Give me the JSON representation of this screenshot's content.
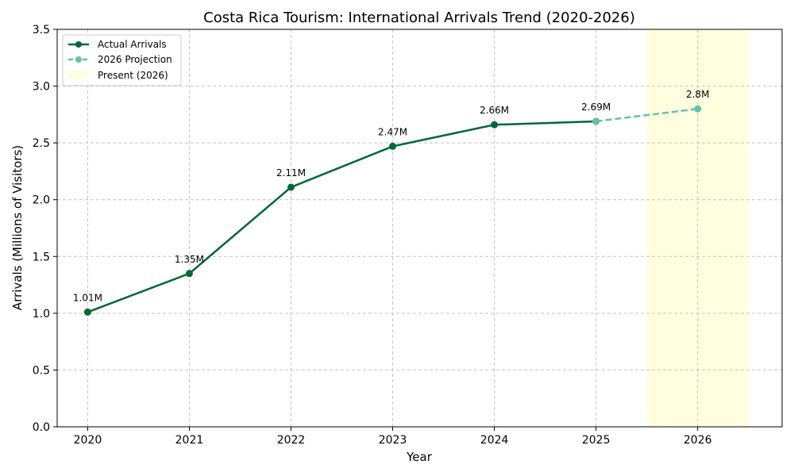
{
  "chart_data": {
    "type": "line",
    "title": "Costa Rica Tourism: International Arrivals Trend (2020-2026)",
    "xlabel": "Year",
    "ylabel": "Arrivals (Millions of Visitors)",
    "x_ticks": [
      "2020",
      "2021",
      "2022",
      "2023",
      "2024",
      "2025",
      "2026"
    ],
    "y_ticks": [
      "0.0",
      "0.5",
      "1.0",
      "1.5",
      "2.0",
      "2.5",
      "3.0",
      "3.5"
    ],
    "xlim": [
      2019.7,
      2026.83
    ],
    "ylim": [
      0,
      3.5
    ],
    "grid": true,
    "legend_position": "top-left",
    "series": [
      {
        "name": "Actual Arrivals",
        "x": [
          2020,
          2021,
          2022,
          2023,
          2024,
          2025
        ],
        "y": [
          1.01,
          1.35,
          2.11,
          2.47,
          2.66,
          2.69
        ],
        "labels": [
          "1.01M",
          "1.35M",
          "2.11M",
          "2.47M",
          "2.66M",
          "2.69M"
        ],
        "color": "#006837",
        "style": "solid"
      },
      {
        "name": "2026 Projection",
        "x": [
          2025,
          2026
        ],
        "y": [
          2.69,
          2.8
        ],
        "labels": [
          "",
          "2.8M"
        ],
        "color": "#66c2a4",
        "style": "dashed"
      }
    ],
    "highlight": {
      "name": "Present (2026)",
      "x_range": [
        2025.5,
        2026.5
      ],
      "color": "#ffffe0"
    }
  }
}
